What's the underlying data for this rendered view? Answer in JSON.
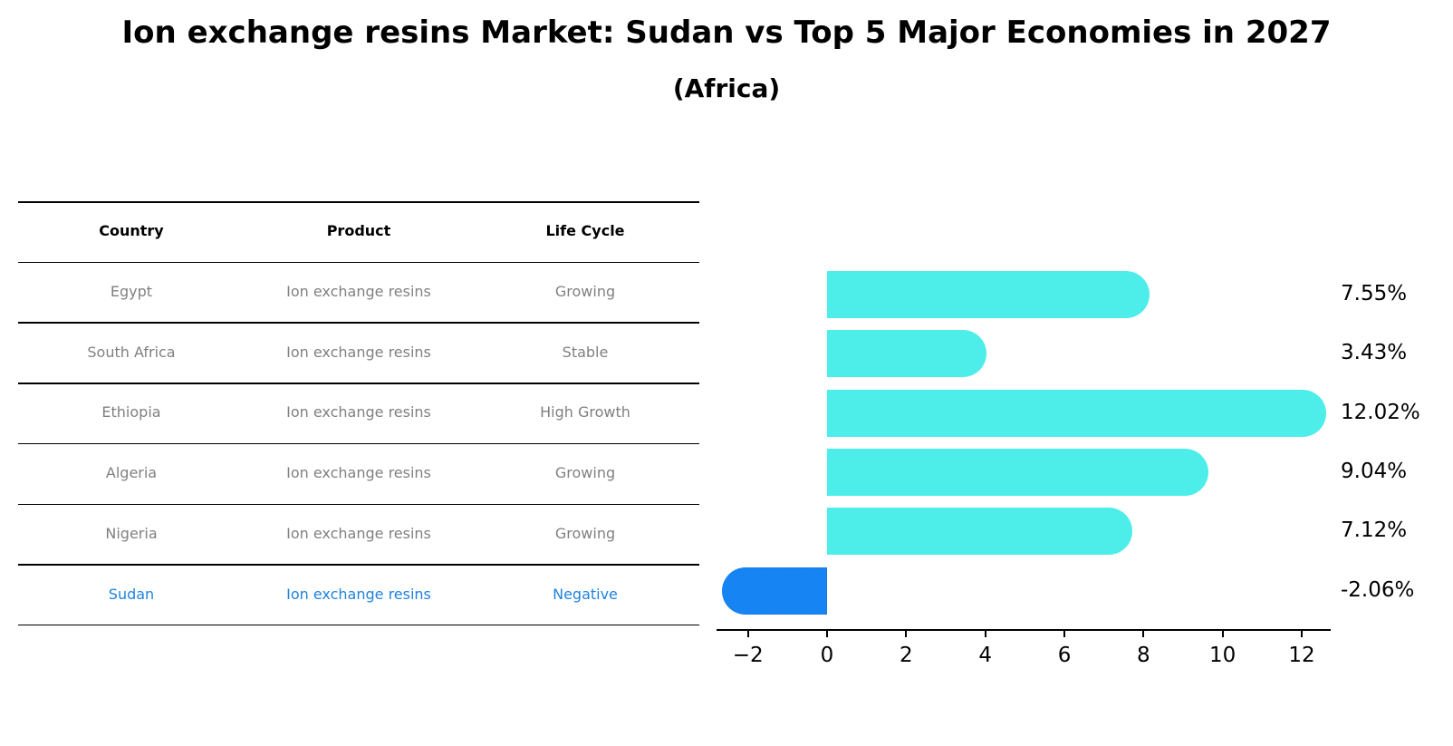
{
  "header": {
    "title": "Ion exchange resins Market: Sudan vs Top 5 Major Economies in 2027",
    "subtitle": "(Africa)"
  },
  "table": {
    "columns": [
      "Country",
      "Product",
      "Life Cycle"
    ],
    "rows": [
      {
        "country": "Egypt",
        "product": "Ion exchange resins",
        "life_cycle": "Growing",
        "highlight": false
      },
      {
        "country": "South Africa",
        "product": "Ion exchange resins",
        "life_cycle": "Stable",
        "highlight": false
      },
      {
        "country": "Ethiopia",
        "product": "Ion exchange resins",
        "life_cycle": "High Growth",
        "highlight": false
      },
      {
        "country": "Algeria",
        "product": "Ion exchange resins",
        "life_cycle": "Growing",
        "highlight": false
      },
      {
        "country": "Nigeria",
        "product": "Ion exchange resins",
        "life_cycle": "Growing",
        "highlight": false
      },
      {
        "country": "Sudan",
        "product": "Ion exchange resins",
        "life_cycle": "Negative",
        "highlight": true
      }
    ]
  },
  "colors": {
    "bar_default": "#4DEEEA",
    "bar_highlight": "#1685F3",
    "text_muted": "#808080",
    "text_highlight": "#1F82E0"
  },
  "chart_data": {
    "type": "bar",
    "orientation": "horizontal",
    "title": "Ion exchange resins Market: Sudan vs Top 5 Major Economies in 2027",
    "subtitle": "(Africa)",
    "categories": [
      "Egypt",
      "South Africa",
      "Ethiopia",
      "Algeria",
      "Nigeria",
      "Sudan"
    ],
    "values": [
      7.55,
      3.43,
      12.02,
      9.04,
      7.12,
      -2.06
    ],
    "value_labels": [
      "7.55%",
      "3.43%",
      "12.02%",
      "9.04%",
      "7.12%",
      "-2.06%"
    ],
    "highlight_category": "Sudan",
    "xlabel": "",
    "ylabel": "",
    "xticks": [
      -2,
      0,
      2,
      4,
      6,
      8,
      10,
      12
    ],
    "xtick_labels": [
      "−2",
      "0",
      "2",
      "4",
      "6",
      "8",
      "10",
      "12"
    ],
    "xlim": [
      -2.8,
      12.8
    ],
    "grid": false,
    "legend": null
  }
}
